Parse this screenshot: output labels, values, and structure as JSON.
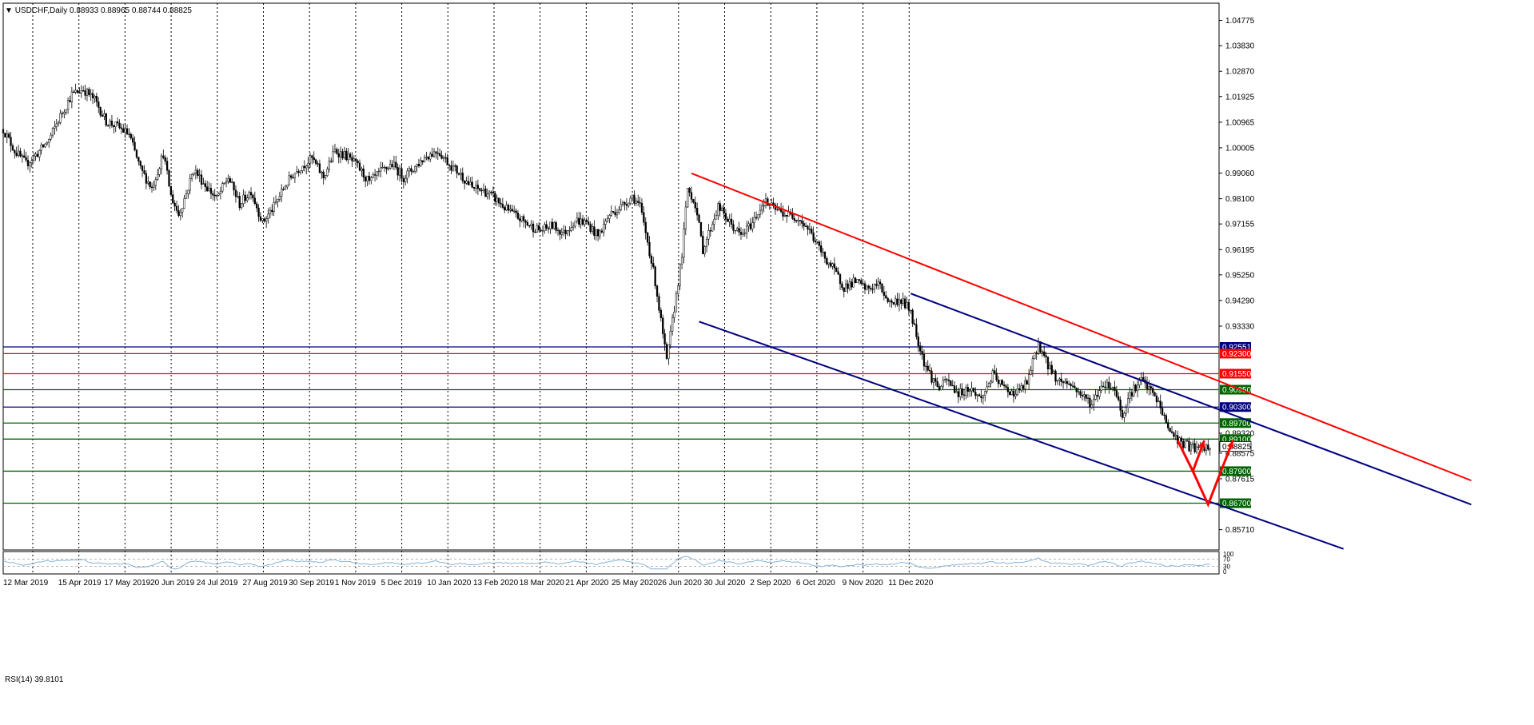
{
  "header": {
    "symbol": "USDCHF,Daily",
    "ohlc": "0.88933 0.88965 0.88744 0.88825"
  },
  "rsi": {
    "label": "RSI(14) 39.8101",
    "levels": [
      "100",
      "70",
      "30",
      "0"
    ]
  },
  "chart_data": {
    "type": "candlestick",
    "title": "",
    "xlabel": "",
    "ylabel": "",
    "ylim": [
      0.8495,
      1.0542
    ],
    "grid": "vertical-dotted",
    "price_ticks": [
      1.04775,
      1.0383,
      1.0287,
      1.01925,
      1.00965,
      1.00005,
      0.9906,
      0.981,
      0.97155,
      0.96195,
      0.9525,
      0.9429,
      0.9333,
      0.8932,
      0.88575,
      0.87615,
      0.8571
    ],
    "time_labels": [
      "12 Mar 2019",
      "15 Apr 2019",
      "17 May 2019",
      "20 Jun 2019",
      "24 Jul 2019",
      "27 Aug 2019",
      "30 Sep 2019",
      "1 Nov 2019",
      "5 Dec 2019",
      "10 Jan 2020",
      "13 Feb 2020",
      "18 Mar 2020",
      "21 Apr 2020",
      "25 May 2020",
      "26 Jun 2020",
      "30 Jul 2020",
      "2 Sep 2020",
      "6 Oct 2020",
      "9 Nov 2020",
      "11 Dec 2020"
    ],
    "price_path": [
      [
        0,
        1.007
      ],
      [
        6,
        0.999
      ],
      [
        12,
        0.994
      ],
      [
        18,
        0.998
      ],
      [
        24,
        1.003
      ],
      [
        30,
        1.012
      ],
      [
        36,
        1.02
      ],
      [
        42,
        1.022
      ],
      [
        48,
        1.018
      ],
      [
        54,
        1.01
      ],
      [
        60,
        1.008
      ],
      [
        66,
        1.005
      ],
      [
        72,
        0.992
      ],
      [
        78,
        0.985
      ],
      [
        84,
        0.998
      ],
      [
        88,
        0.982
      ],
      [
        92,
        0.975
      ],
      [
        96,
        0.983
      ],
      [
        100,
        0.992
      ],
      [
        106,
        0.986
      ],
      [
        112,
        0.981
      ],
      [
        118,
        0.989
      ],
      [
        124,
        0.979
      ],
      [
        130,
        0.984
      ],
      [
        136,
        0.972
      ],
      [
        142,
        0.978
      ],
      [
        148,
        0.986
      ],
      [
        152,
        0.99
      ],
      [
        156,
        0.993
      ],
      [
        162,
        0.996
      ],
      [
        168,
        0.989
      ],
      [
        174,
        0.999
      ],
      [
        180,
        0.997
      ],
      [
        186,
        0.993
      ],
      [
        192,
        0.987
      ],
      [
        198,
        0.991
      ],
      [
        204,
        0.994
      ],
      [
        210,
        0.989
      ],
      [
        216,
        0.993
      ],
      [
        222,
        0.997
      ],
      [
        228,
        0.999
      ],
      [
        234,
        0.994
      ],
      [
        240,
        0.99
      ],
      [
        246,
        0.985
      ],
      [
        252,
        0.984
      ],
      [
        258,
        0.981
      ],
      [
        264,
        0.977
      ],
      [
        270,
        0.974
      ],
      [
        276,
        0.971
      ],
      [
        282,
        0.969
      ],
      [
        288,
        0.971
      ],
      [
        294,
        0.968
      ],
      [
        300,
        0.973
      ],
      [
        306,
        0.972
      ],
      [
        312,
        0.967
      ],
      [
        318,
        0.975
      ],
      [
        324,
        0.978
      ],
      [
        330,
        0.982
      ],
      [
        334,
        0.978
      ],
      [
        338,
        0.965
      ],
      [
        342,
        0.95
      ],
      [
        346,
        0.93
      ],
      [
        348,
        0.92
      ],
      [
        352,
        0.94
      ],
      [
        356,
        0.96
      ],
      [
        359,
        0.985
      ],
      [
        363,
        0.979
      ],
      [
        367,
        0.962
      ],
      [
        371,
        0.97
      ],
      [
        375,
        0.978
      ],
      [
        381,
        0.972
      ],
      [
        387,
        0.967
      ],
      [
        393,
        0.972
      ],
      [
        399,
        0.98
      ],
      [
        405,
        0.977
      ],
      [
        411,
        0.975
      ],
      [
        417,
        0.974
      ],
      [
        423,
        0.969
      ],
      [
        429,
        0.961
      ],
      [
        435,
        0.955
      ],
      [
        441,
        0.948
      ],
      [
        447,
        0.95
      ],
      [
        453,
        0.947
      ],
      [
        459,
        0.949
      ],
      [
        465,
        0.942
      ],
      [
        471,
        0.943
      ],
      [
        476,
        0.939
      ],
      [
        479,
        0.93
      ],
      [
        483,
        0.92
      ],
      [
        487,
        0.914
      ],
      [
        491,
        0.91
      ],
      [
        495,
        0.913
      ],
      [
        501,
        0.908
      ],
      [
        507,
        0.91
      ],
      [
        513,
        0.906
      ],
      [
        519,
        0.915
      ],
      [
        525,
        0.91
      ],
      [
        531,
        0.908
      ],
      [
        537,
        0.912
      ],
      [
        543,
        0.927
      ],
      [
        547,
        0.92
      ],
      [
        553,
        0.913
      ],
      [
        559,
        0.912
      ],
      [
        565,
        0.908
      ],
      [
        571,
        0.904
      ],
      [
        577,
        0.912
      ],
      [
        583,
        0.91
      ],
      [
        587,
        0.9
      ],
      [
        591,
        0.908
      ],
      [
        597,
        0.913
      ],
      [
        603,
        0.908
      ],
      [
        607,
        0.903
      ],
      [
        611,
        0.895
      ],
      [
        617,
        0.89
      ],
      [
        623,
        0.888
      ],
      [
        629,
        0.887
      ],
      [
        633,
        0.8883
      ]
    ],
    "levels": [
      {
        "value": 0.92551,
        "label": "0.92551",
        "color": "#000080"
      },
      {
        "value": 0.923,
        "label": "0.92300",
        "color": "#ff0000"
      },
      {
        "value": 0.9155,
        "label": "0.91550",
        "color": "#ff0000"
      },
      {
        "value": 0.9095,
        "label": "0.90950",
        "color": "#006400"
      },
      {
        "value": 0.903,
        "label": "0.90300",
        "color": "#000080"
      },
      {
        "value": 0.897,
        "label": "0.89700",
        "color": "#006400"
      },
      {
        "value": 0.891,
        "label": "0.89100",
        "color": "#006400"
      },
      {
        "value": 0.879,
        "label": "0.87900",
        "color": "#006400"
      },
      {
        "value": 0.867,
        "label": "0.86700",
        "color": "#006400"
      }
    ],
    "current_price": {
      "value": 0.88825,
      "label": "0.88825"
    },
    "trendlines": [
      {
        "name": "",
        "color": "#ff0000",
        "from": [
          361,
          0.9905
        ],
        "to": [
          770,
          0.8755
        ]
      },
      {
        "name": "",
        "color": "#000080",
        "from": [
          476,
          0.9455
        ],
        "to": [
          770,
          0.8665
        ]
      },
      {
        "name": "",
        "color": "#000080",
        "from": [
          365,
          0.935
        ],
        "to": [
          703,
          0.8499
        ]
      }
    ],
    "projection_arrows": [
      {
        "points": [
          [
            616,
            0.8905
          ],
          [
            624,
            0.879
          ],
          [
            630,
            0.8905
          ]
        ],
        "color": "#ff0000"
      },
      {
        "points": [
          [
            624,
            0.879
          ],
          [
            632,
            0.8665
          ],
          [
            645,
            0.8905
          ]
        ],
        "color": "#ff0000"
      }
    ],
    "colors": {
      "candle": "#000000",
      "grid": "#000000",
      "rsi_line": "#87b4d8"
    }
  }
}
